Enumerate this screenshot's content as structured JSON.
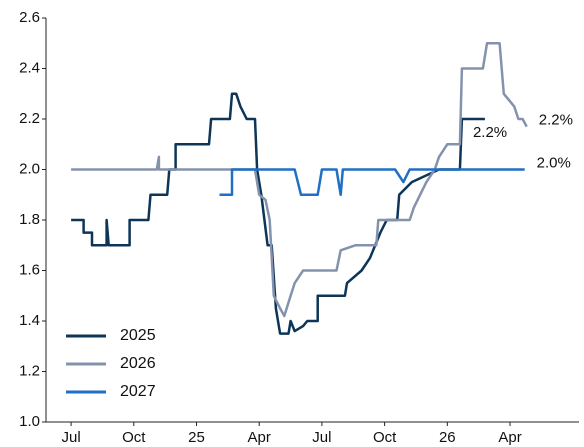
{
  "chart_data": {
    "type": "line",
    "xlim": [
      -1.2,
      24.3
    ],
    "xticks": [
      {
        "value": 0,
        "label": "Jul"
      },
      {
        "value": 3,
        "label": "Oct"
      },
      {
        "value": 6,
        "label": "25"
      },
      {
        "value": 9,
        "label": "Apr"
      },
      {
        "value": 12,
        "label": "Jul"
      },
      {
        "value": 15,
        "label": "Oct"
      },
      {
        "value": 18,
        "label": "26"
      },
      {
        "value": 21,
        "label": "Apr"
      }
    ],
    "ylim": [
      1.0,
      2.6
    ],
    "yticks": [
      {
        "value": 1.0,
        "label": "1.0"
      },
      1.2,
      1.4,
      1.6,
      1.8,
      {
        "value": 2.0,
        "label": "2.0"
      },
      2.2,
      2.4,
      2.6
    ],
    "legend": "lower left",
    "series": [
      {
        "name": "2025",
        "color": "#0d3557",
        "end_label": "2.2%",
        "x": [
          0,
          0.6,
          0.6,
          1.0,
          1.0,
          1.7,
          1.7,
          1.8,
          2.8,
          2.8,
          3.7,
          3.8,
          4.6,
          4.7,
          5.0,
          5.0,
          6.6,
          6.7,
          7.6,
          7.7,
          7.9,
          8.1,
          8.4,
          8.8,
          8.9,
          9.1,
          9.4,
          9.6,
          9.8,
          10.0,
          10.4,
          10.5,
          10.7,
          11.1,
          11.3,
          11.8,
          11.8,
          13.1,
          13.2,
          13.9,
          14.3,
          14.8,
          15.1,
          15.6,
          15.7,
          16.3,
          17.6,
          18.6,
          18.7,
          19.8
        ],
        "values": [
          1.8,
          1.8,
          1.75,
          1.75,
          1.7,
          1.7,
          1.8,
          1.7,
          1.7,
          1.8,
          1.8,
          1.9,
          1.9,
          2.0,
          2.0,
          2.1,
          2.1,
          2.2,
          2.2,
          2.3,
          2.3,
          2.25,
          2.2,
          2.2,
          2.0,
          1.9,
          1.7,
          1.7,
          1.45,
          1.35,
          1.35,
          1.4,
          1.36,
          1.38,
          1.4,
          1.4,
          1.5,
          1.5,
          1.55,
          1.6,
          1.65,
          1.75,
          1.8,
          1.8,
          1.9,
          1.95,
          2.0,
          2.0,
          2.2,
          2.2
        ]
      },
      {
        "name": "2026",
        "color": "#8592ad",
        "end_label": "2.2%",
        "x": [
          0,
          4.1,
          4.2,
          4.2,
          8.8,
          9.0,
          9.3,
          9.5,
          9.7,
          10.0,
          10.2,
          10.5,
          10.7,
          11.1,
          12.7,
          12.9,
          13.6,
          14.6,
          14.7,
          16.2,
          16.4,
          16.7,
          17.0,
          17.4,
          17.6,
          18.0,
          18.6,
          18.7,
          19.7,
          19.9,
          20.5,
          20.7,
          21.2,
          21.4,
          21.6,
          21.8
        ],
        "values": [
          2.0,
          2.0,
          2.05,
          2.0,
          2.0,
          1.9,
          1.88,
          1.8,
          1.5,
          1.45,
          1.42,
          1.5,
          1.55,
          1.6,
          1.6,
          1.68,
          1.7,
          1.7,
          1.8,
          1.8,
          1.85,
          1.9,
          1.95,
          2.0,
          2.05,
          2.1,
          2.1,
          2.4,
          2.4,
          2.5,
          2.5,
          2.3,
          2.25,
          2.2,
          2.2,
          2.17
        ]
      },
      {
        "name": "2027",
        "color": "#1f6fc5",
        "end_label": "2.0%",
        "x": [
          7.1,
          7.7,
          7.7,
          10.7,
          11.0,
          11.8,
          12.0,
          12.7,
          12.9,
          13.0,
          15.5,
          15.9,
          16.2,
          17.1,
          21.7
        ],
        "values": [
          1.9,
          1.9,
          2.0,
          2.0,
          1.9,
          1.9,
          2.0,
          2.0,
          1.9,
          2.0,
          2.0,
          1.95,
          2.0,
          2.0,
          2.0
        ]
      }
    ]
  }
}
